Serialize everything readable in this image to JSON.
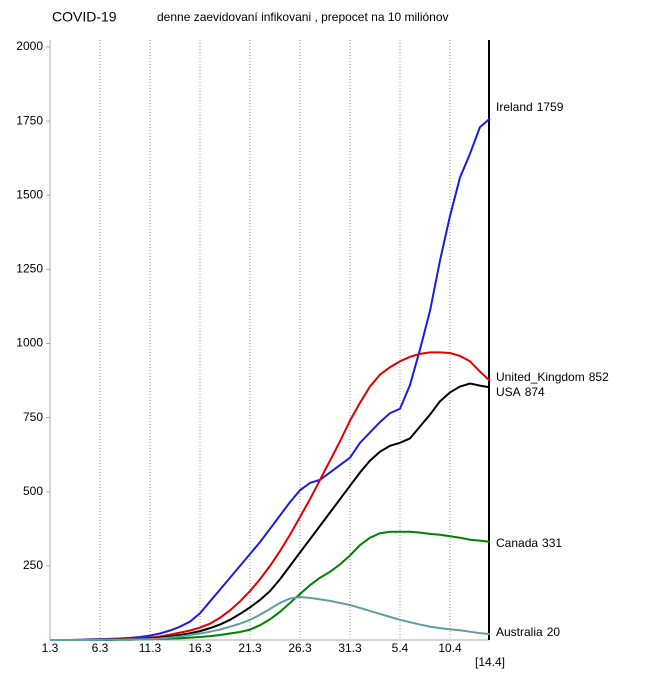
{
  "chart_data": {
    "type": "line",
    "title": "COVID-19",
    "subtitle": "denne zaevidovaní infikovani , prepocet na 10 miliónov",
    "categories": [
      "1.3",
      null,
      null,
      null,
      null,
      "6.3",
      null,
      null,
      null,
      null,
      "11.3",
      null,
      null,
      null,
      null,
      "16.3",
      null,
      null,
      null,
      null,
      "21.3",
      null,
      null,
      null,
      null,
      "26.3",
      null,
      null,
      null,
      null,
      "31.3",
      null,
      null,
      null,
      null,
      "5.4",
      null,
      null,
      null,
      null,
      "10.4",
      null,
      null,
      null,
      "[14.4]"
    ],
    "ylim": [
      0,
      2000
    ],
    "yticks": [
      250,
      500,
      750,
      1000,
      1250,
      1500,
      1750,
      2000
    ],
    "grid": true,
    "series": [
      {
        "name": "Ireland",
        "color": "#1c1ce0",
        "values": [
          0,
          0,
          0,
          1,
          2,
          3,
          4,
          5,
          7,
          10,
          15,
          22,
          32,
          45,
          62,
          90,
          130,
          170,
          210,
          250,
          290,
          330,
          375,
          420,
          465,
          505,
          530,
          540,
          565,
          590,
          615,
          665,
          700,
          735,
          765,
          780,
          860,
          980,
          1110,
          1280,
          1430,
          1560,
          1640,
          1730,
          1759
        ]
      },
      {
        "name": "USA",
        "color": "#e00000",
        "values": [
          0,
          0,
          0,
          0,
          1,
          1,
          2,
          3,
          4,
          5,
          8,
          12,
          18,
          25,
          32,
          42,
          55,
          75,
          100,
          130,
          165,
          205,
          250,
          300,
          355,
          415,
          475,
          540,
          605,
          670,
          740,
          800,
          855,
          895,
          920,
          940,
          955,
          965,
          970,
          970,
          968,
          958,
          940,
          905,
          874
        ]
      },
      {
        "name": "United_Kingdom",
        "color": "#000000",
        "values": [
          0,
          0,
          0,
          0,
          0,
          1,
          1,
          2,
          2,
          3,
          5,
          8,
          12,
          17,
          23,
          30,
          40,
          52,
          68,
          88,
          110,
          135,
          165,
          205,
          250,
          295,
          340,
          385,
          430,
          475,
          520,
          565,
          605,
          635,
          655,
          665,
          680,
          720,
          760,
          805,
          835,
          855,
          865,
          858,
          852
        ]
      },
      {
        "name": "Canada",
        "color": "#008000",
        "values": [
          0,
          0,
          0,
          0,
          0,
          0,
          0,
          1,
          1,
          2,
          3,
          4,
          5,
          6,
          8,
          10,
          13,
          17,
          22,
          27,
          35,
          50,
          70,
          95,
          125,
          155,
          185,
          210,
          230,
          255,
          285,
          320,
          345,
          360,
          365,
          365,
          365,
          362,
          358,
          355,
          350,
          345,
          338,
          335,
          331
        ]
      },
      {
        "name": "Australia",
        "color": "#5f9ea0",
        "values": [
          0,
          0,
          0,
          0,
          0,
          1,
          1,
          1,
          2,
          2,
          3,
          5,
          8,
          12,
          17,
          22,
          28,
          35,
          45,
          55,
          68,
          85,
          105,
          125,
          140,
          145,
          142,
          137,
          132,
          125,
          118,
          108,
          98,
          88,
          78,
          68,
          60,
          52,
          45,
          40,
          36,
          33,
          28,
          23,
          20
        ]
      }
    ]
  }
}
